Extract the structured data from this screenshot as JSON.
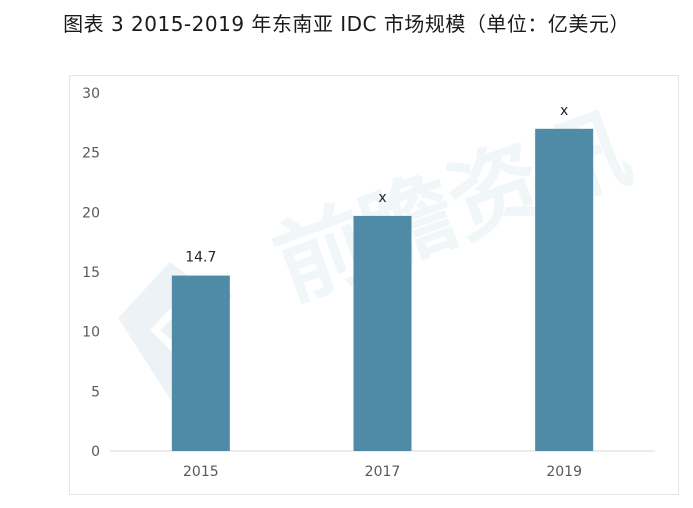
{
  "title": "图表 3 2015-2019 年东南亚 IDC 市场规模（单位：亿美元）",
  "watermark_text": "前瞻资讯",
  "chart_data": {
    "type": "bar",
    "categories": [
      "2015",
      "2017",
      "2019"
    ],
    "values": [
      14.7,
      19.7,
      27.0
    ],
    "data_labels": [
      "14.7",
      "x",
      "x"
    ],
    "ylim": [
      0,
      30
    ],
    "yticks": [
      0,
      5,
      10,
      15,
      20,
      25,
      30
    ],
    "bar_color": "#4f8aa6",
    "grid": false,
    "xlabel": "",
    "ylabel": ""
  }
}
